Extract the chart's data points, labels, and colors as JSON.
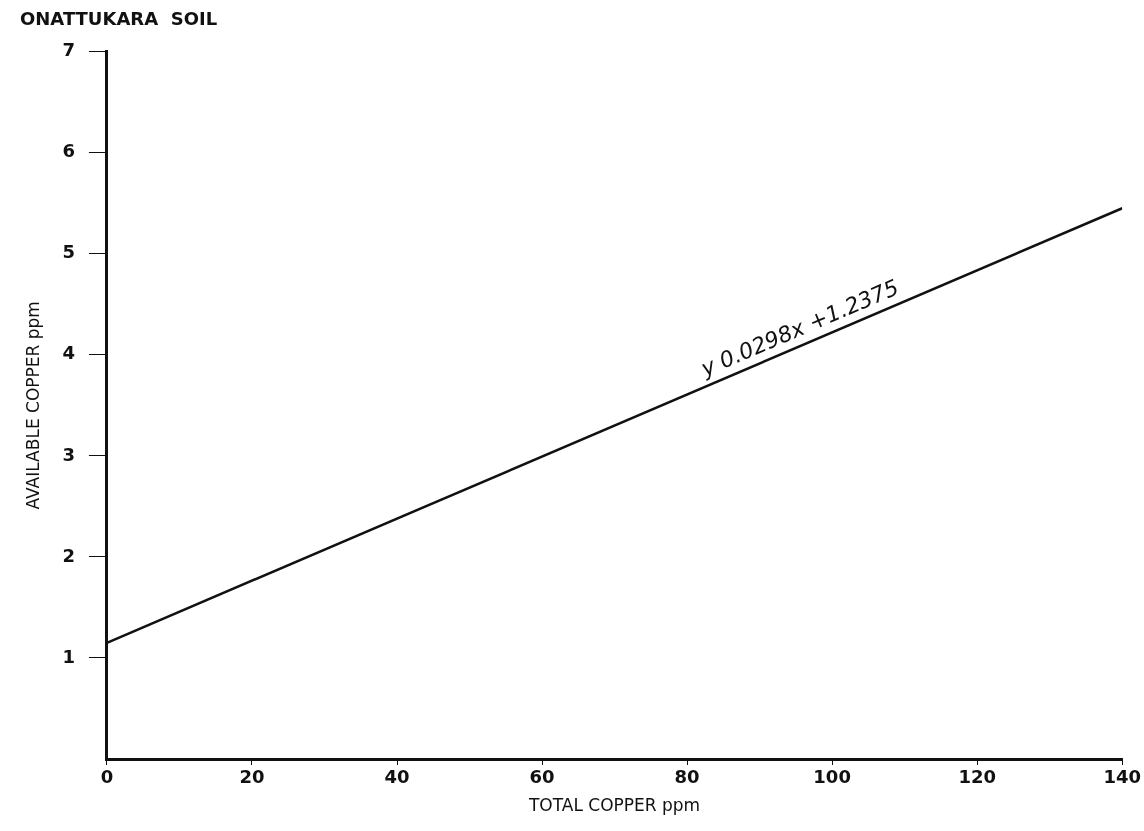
{
  "chart_data": {
    "type": "line",
    "title": "ONATTUKARA  SOIL",
    "xlabel": "TOTAL COPPER ppm",
    "ylabel": "AVAILABLE COPPER ppm",
    "x": [
      0,
      140
    ],
    "series": [
      {
        "color": "#111111",
        "values": [
          1.15,
          5.45
        ]
      }
    ],
    "xlim": [
      0,
      140
    ],
    "xticks": [
      0,
      20,
      40,
      60,
      80,
      100,
      120,
      140
    ],
    "ylim": [
      0,
      7
    ],
    "yticks": [
      1,
      2,
      3,
      4,
      5,
      6,
      7
    ],
    "annotations": [
      {
        "text": "y 0.0298x +1.2375",
        "x": 83,
        "y": 3.7
      }
    ],
    "grid": false,
    "legend": false,
    "marker": "none",
    "line_style": "solid"
  }
}
